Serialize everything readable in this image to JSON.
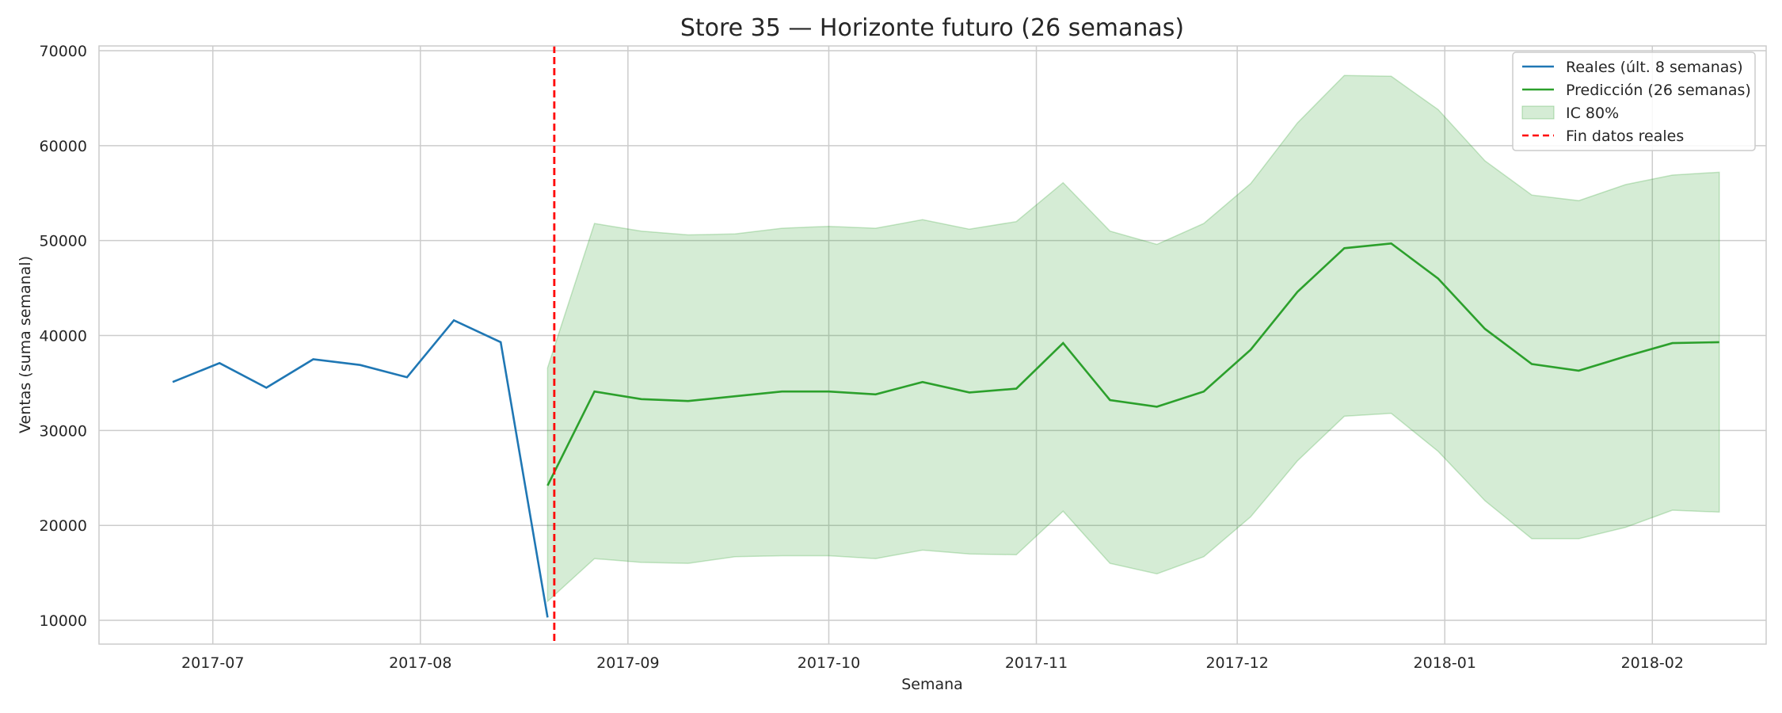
{
  "chart_data": {
    "type": "line",
    "title": "Store 35 — Horizonte futuro (26 semanas)",
    "xlabel": "Semana",
    "ylabel": "Ventas (suma semanal)",
    "ylim": [
      7500,
      70500
    ],
    "yticks": [
      10000,
      20000,
      30000,
      40000,
      50000,
      60000,
      70000
    ],
    "xlim": [
      "2017-06-14",
      "2018-02-18"
    ],
    "xticks": [
      "2017-07",
      "2017-08",
      "2017-09",
      "2017-10",
      "2017-11",
      "2017-12",
      "2018-01",
      "2018-02"
    ],
    "grid": true,
    "legend_position": "top-right",
    "colors": {
      "actual": "#1f77b4",
      "forecast": "#2ca02c",
      "ci_fill": "#2ca02c",
      "cutoff": "#ff0000",
      "grid": "#cccccc"
    },
    "series": [
      {
        "name": "Reales (últ. 8 semanas)",
        "x": [
          "2017-06-25",
          "2017-07-02",
          "2017-07-09",
          "2017-07-16",
          "2017-07-23",
          "2017-07-30",
          "2017-08-06",
          "2017-08-13",
          "2017-08-20"
        ],
        "values": [
          35100,
          37100,
          34500,
          37500,
          36900,
          35600,
          41600,
          39300,
          10300
        ]
      },
      {
        "name": "Predicción (26 semanas)",
        "x": [
          "2017-08-20",
          "2017-08-27",
          "2017-09-03",
          "2017-09-10",
          "2017-09-17",
          "2017-09-24",
          "2017-10-01",
          "2017-10-08",
          "2017-10-15",
          "2017-10-22",
          "2017-10-29",
          "2017-11-05",
          "2017-11-12",
          "2017-11-19",
          "2017-11-26",
          "2017-12-03",
          "2017-12-10",
          "2017-12-17",
          "2017-12-24",
          "2017-12-31",
          "2018-01-07",
          "2018-01-14",
          "2018-01-21",
          "2018-01-28",
          "2018-02-04",
          "2018-02-11"
        ],
        "values": [
          24200,
          34100,
          33300,
          33100,
          33600,
          34100,
          34100,
          33800,
          35100,
          34000,
          34400,
          39200,
          33200,
          32500,
          34100,
          38500,
          44600,
          49200,
          49700,
          46000,
          40700,
          37000,
          36300,
          37800,
          39200,
          39300
        ]
      }
    ],
    "interval": {
      "name": "IC 80%",
      "x": [
        "2017-08-20",
        "2017-08-27",
        "2017-09-03",
        "2017-09-10",
        "2017-09-17",
        "2017-09-24",
        "2017-10-01",
        "2017-10-08",
        "2017-10-15",
        "2017-10-22",
        "2017-10-29",
        "2017-11-05",
        "2017-11-12",
        "2017-11-19",
        "2017-11-26",
        "2017-12-03",
        "2017-12-10",
        "2017-12-17",
        "2017-12-24",
        "2017-12-31",
        "2018-01-07",
        "2018-01-14",
        "2018-01-21",
        "2018-01-28",
        "2018-02-04",
        "2018-02-11"
      ],
      "lower": [
        12000,
        16500,
        16100,
        16000,
        16700,
        16800,
        16800,
        16500,
        17400,
        17000,
        16900,
        21500,
        16000,
        14900,
        16700,
        20900,
        26800,
        31500,
        31800,
        27800,
        22600,
        18600,
        18600,
        19800,
        21600,
        21400
      ],
      "upper": [
        36600,
        51800,
        51000,
        50600,
        50700,
        51300,
        51500,
        51300,
        52200,
        51200,
        52000,
        56100,
        51000,
        49600,
        51800,
        56000,
        62400,
        67400,
        67300,
        63800,
        58400,
        54800,
        54200,
        55900,
        56900,
        57200
      ]
    },
    "cutoff": {
      "name": "Fin datos reales",
      "x": "2017-08-21"
    }
  }
}
